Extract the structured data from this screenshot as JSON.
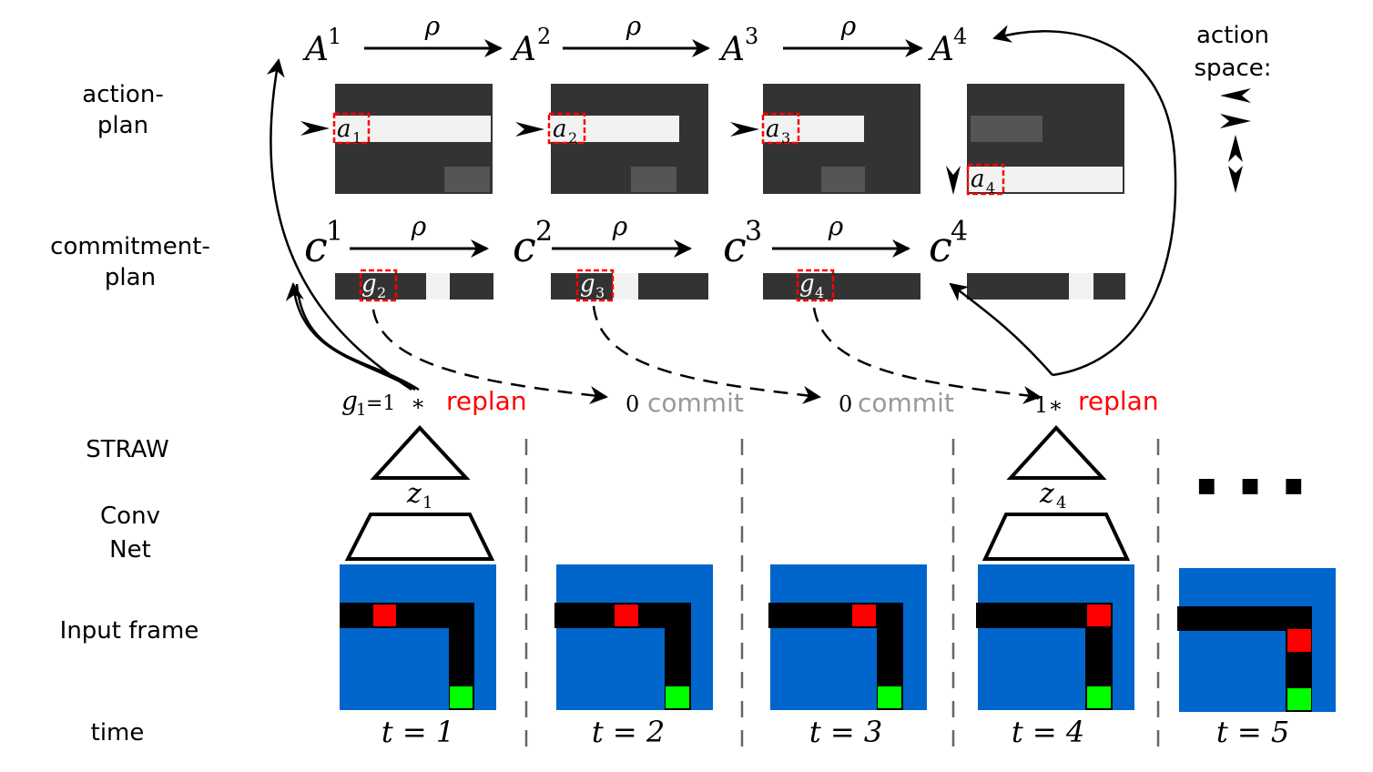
{
  "row_labels": {
    "action_plan": [
      "action-",
      "plan"
    ],
    "commitment_plan": [
      "commitment-",
      "plan"
    ],
    "straw": "STRAW",
    "convnet": [
      "Conv",
      "Net"
    ],
    "input_frame": "Input frame",
    "time": "time"
  },
  "action_space": {
    "label": [
      "action",
      "space:"
    ]
  },
  "action_plans": [
    {
      "name": "A",
      "superscript": "1"
    },
    {
      "name": "A",
      "superscript": "2"
    },
    {
      "name": "A",
      "superscript": "3"
    },
    {
      "name": "A",
      "superscript": "4"
    }
  ],
  "commitment_plans": [
    {
      "name": "c",
      "superscript": "1"
    },
    {
      "name": "c",
      "superscript": "2"
    },
    {
      "name": "c",
      "superscript": "3"
    },
    {
      "name": "c",
      "superscript": "4"
    }
  ],
  "transition_symbol": "ρ",
  "action_markers": [
    {
      "name": "a",
      "subscript": "1"
    },
    {
      "name": "a",
      "subscript": "2"
    },
    {
      "name": "a",
      "subscript": "3"
    },
    {
      "name": "a",
      "subscript": "4"
    }
  ],
  "gate_markers": [
    {
      "name": "g",
      "subscript": "2"
    },
    {
      "name": "g",
      "subscript": "3"
    },
    {
      "name": "g",
      "subscript": "4"
    }
  ],
  "decisions": [
    {
      "prefix": "g",
      "subscript": "1",
      "value": "=1",
      "star": "∗",
      "label": "replan",
      "type": "replan"
    },
    {
      "value": "0",
      "label": "commit",
      "type": "commit"
    },
    {
      "value": "0",
      "label": "commit",
      "type": "commit"
    },
    {
      "value": "1∗",
      "label": "replan",
      "type": "replan"
    }
  ],
  "latents": [
    {
      "name": "z",
      "subscript": "1"
    },
    {
      "name": "z",
      "subscript": "4"
    }
  ],
  "time_steps": [
    "t = 1",
    "t = 2",
    "t = 3",
    "t = 4",
    "t = 5"
  ],
  "ellipsis": "■ ■ ■",
  "colors": {
    "plan_background": "#333333",
    "plan_highlight": "#f2f2f2",
    "plan_dim": "#555555",
    "frame_background": "#0066cc",
    "agent": "#ff0000",
    "goal": "#00ff00",
    "replan_text": "#ff0000",
    "commit_text": "#999999",
    "marker_box": "#ff0000"
  }
}
